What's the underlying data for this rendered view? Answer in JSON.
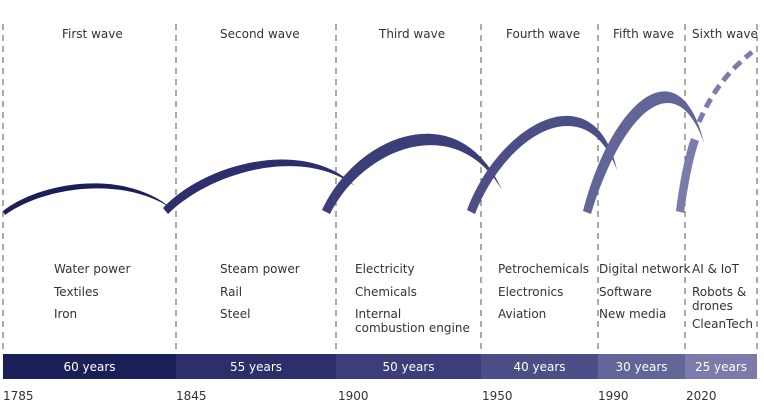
{
  "waves": [
    {
      "title": "First wave",
      "techs": [
        "Water power",
        "Textiles",
        "Iron"
      ],
      "duration": "60 years",
      "year": "1785",
      "color": "#1b1f57"
    },
    {
      "title": "Second wave",
      "techs": [
        "Steam power",
        "Rail",
        "Steel"
      ],
      "duration": "55 years",
      "year": "1845",
      "color": "#2c2f6c"
    },
    {
      "title": "Third wave",
      "techs": [
        "Electricity",
        "Chemicals",
        "Internal combustion engine"
      ],
      "duration": "50 years",
      "year": "1900",
      "color": "#3b3e79"
    },
    {
      "title": "Fourth wave",
      "techs": [
        "Petrochemicals",
        "Electronics",
        "Aviation"
      ],
      "duration": "40 years",
      "year": "1950",
      "color": "#4b4e87"
    },
    {
      "title": "Fifth wave",
      "techs": [
        "Digital network",
        "Software",
        "New media"
      ],
      "duration": "30 years",
      "year": "1990",
      "color": "#626598"
    },
    {
      "title": "Sixth wave",
      "techs": [
        "AI & IoT",
        "Robots & drones",
        "CleanTech"
      ],
      "duration": "25 years",
      "year": "2020",
      "color": "#7b7cab"
    }
  ]
}
